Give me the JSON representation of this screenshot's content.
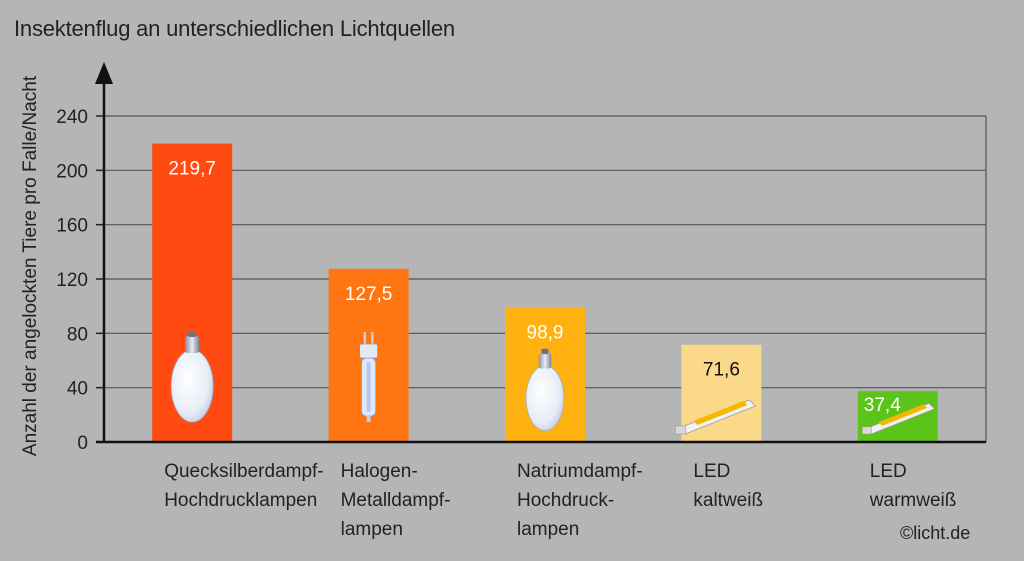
{
  "chart_data": {
    "type": "bar",
    "title": "Insektenflug an unterschiedlichen Lichtquellen",
    "ylabel": "Anzahl der angelockten Tiere pro Falle/Nacht",
    "xlabel": "",
    "ylim": [
      0,
      240
    ],
    "yticks": [
      0,
      40,
      80,
      120,
      160,
      200,
      240
    ],
    "grid": true,
    "categories": [
      [
        "Quecksilberdampf-",
        "Hochdrucklampen"
      ],
      [
        "Halogen-",
        "Metalldampf-",
        "lampen"
      ],
      [
        "Natriumdampf-",
        "Hochdruck-",
        "lampen"
      ],
      [
        "LED",
        "kaltweiß"
      ],
      [
        "LED",
        "warmweiß"
      ]
    ],
    "values": [
      219.7,
      127.5,
      98.9,
      71.6,
      37.4
    ],
    "value_labels": [
      "219,7",
      "127,5",
      "98,9",
      "71,6",
      "37,4"
    ],
    "bar_colors": [
      "#ff4a12",
      "#ff7512",
      "#ffb20f",
      "#fbd98a",
      "#5cc418"
    ],
    "value_label_colors": [
      "#ffffff",
      "#ffffff",
      "#ffffff",
      "#111111",
      "#ffffff"
    ],
    "icons": [
      "mercury-lamp-icon",
      "halogen-metal-lamp-icon",
      "sodium-lamp-icon",
      "led-strip-icon",
      "led-strip-icon"
    ]
  },
  "credit": "©licht.de"
}
